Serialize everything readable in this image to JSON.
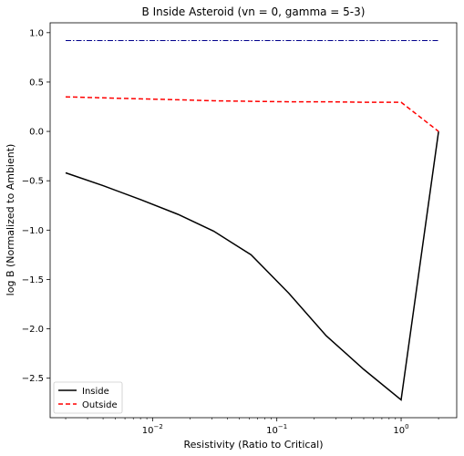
{
  "chart_data": {
    "type": "line",
    "title": "B Inside Asteroid (vn = 0, gamma = 5-3)",
    "xlabel": "Resistivity (Ratio to Critical)",
    "ylabel": "log B (Normalized to Ambient)",
    "xscale": "log",
    "xlim": [
      0.0015,
      2.8
    ],
    "ylim": [
      -2.9,
      1.1
    ],
    "x_ticks": [
      {
        "value": 0.01,
        "base": "10",
        "exp": "−2"
      },
      {
        "value": 0.1,
        "base": "10",
        "exp": "−1"
      },
      {
        "value": 1,
        "base": "10",
        "exp": "0"
      }
    ],
    "y_ticks": [
      {
        "value": 1.0,
        "label": "1.0"
      },
      {
        "value": 0.5,
        "label": "0.5"
      },
      {
        "value": 0.0,
        "label": "0.0"
      },
      {
        "value": -0.5,
        "label": "−0.5"
      },
      {
        "value": -1.0,
        "label": "−1.0"
      },
      {
        "value": -1.5,
        "label": "−1.5"
      },
      {
        "value": -2.0,
        "label": "−2.0"
      },
      {
        "value": -2.5,
        "label": "−2.5"
      }
    ],
    "grid": false,
    "legend_position": "lower-left",
    "series": [
      {
        "name": "Inside",
        "color": "#000000",
        "style": "solid",
        "x": [
          0.002,
          0.004,
          0.008,
          0.016,
          0.031,
          0.062,
          0.125,
          0.25,
          0.5,
          1.0,
          2.0
        ],
        "y": [
          -0.42,
          -0.55,
          -0.69,
          -0.84,
          -1.01,
          -1.25,
          -1.64,
          -2.07,
          -2.41,
          -2.72,
          0.0
        ]
      },
      {
        "name": "Outside",
        "color": "#ff0000",
        "style": "dashed",
        "x": [
          0.002,
          0.004,
          0.008,
          0.016,
          0.031,
          0.062,
          0.125,
          0.25,
          0.5,
          1.0,
          2.0
        ],
        "y": [
          0.35,
          0.34,
          0.33,
          0.32,
          0.31,
          0.305,
          0.3,
          0.3,
          0.295,
          0.295,
          0.0
        ]
      },
      {
        "color": "#00008b",
        "style": "dashdot",
        "x": [
          0.002,
          2.0
        ],
        "y": [
          0.92,
          0.92
        ]
      }
    ]
  }
}
